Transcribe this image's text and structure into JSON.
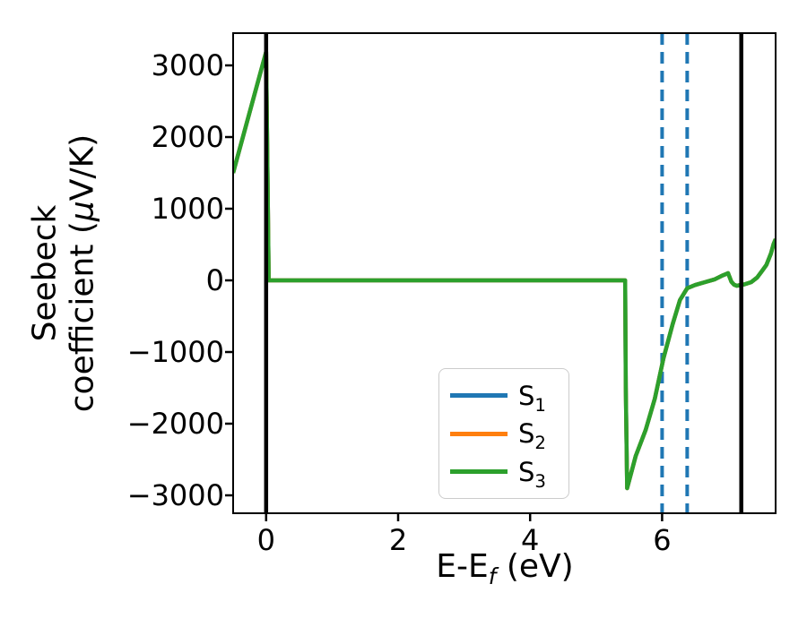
{
  "figure": {
    "ylabel": {
      "line1": "Seebeck",
      "line2_pre": "coefficient  (",
      "mu": "μ",
      "line2_post": "V/K)"
    },
    "xlabel": {
      "pre": "E-E",
      "sub": "f",
      "post": " (eV)"
    }
  },
  "legend": {
    "items": [
      {
        "label": "S",
        "sub": "1",
        "color": "#1f77b4"
      },
      {
        "label": "S",
        "sub": "2",
        "color": "#ff7f0e"
      },
      {
        "label": "S",
        "sub": "3",
        "color": "#2ca02c"
      }
    ]
  },
  "chart_data": {
    "type": "line",
    "title": "",
    "xlabel": "E-E_f (eV)",
    "ylabel": "Seebeck coefficient (μV/K)",
    "xlim": [
      -0.5,
      7.72
    ],
    "ylim": [
      -3250,
      3450
    ],
    "xticks": [
      0,
      2,
      4,
      6
    ],
    "xtick_labels": [
      "0",
      "2",
      "4",
      "6"
    ],
    "yticks": [
      3000,
      2000,
      1000,
      0,
      -1000,
      -2000,
      -3000
    ],
    "ytick_labels": [
      "3000",
      "2000",
      "1000",
      "0",
      "−1000",
      "−2000",
      "−3000"
    ],
    "grid": false,
    "legend_position": "lower center",
    "axvlines_solid_black": [
      0,
      7.2
    ],
    "axvlines_dashed_blue": {
      "x": [
        6.0,
        6.38
      ],
      "color": "#1f77b4"
    },
    "shared_points": [
      [
        -0.5,
        1500
      ],
      [
        0,
        3190
      ],
      [
        0.04,
        0
      ],
      [
        5.44,
        0
      ],
      [
        5.45,
        -1500
      ],
      [
        5.47,
        -2900
      ],
      [
        5.6,
        -2450
      ],
      [
        5.75,
        -2090
      ],
      [
        5.89,
        -1650
      ],
      [
        6.02,
        -1090
      ],
      [
        6.16,
        -610
      ],
      [
        6.27,
        -275
      ],
      [
        6.38,
        -110
      ],
      [
        6.5,
        -65
      ],
      [
        6.65,
        -25
      ],
      [
        6.8,
        15
      ],
      [
        6.92,
        70
      ],
      [
        7.0,
        100
      ],
      [
        7.05,
        -20
      ],
      [
        7.09,
        -60
      ],
      [
        7.13,
        -75
      ],
      [
        7.24,
        -58
      ],
      [
        7.35,
        -25
      ],
      [
        7.44,
        40
      ],
      [
        7.51,
        125
      ],
      [
        7.58,
        215
      ],
      [
        7.65,
        375
      ],
      [
        7.69,
        510
      ],
      [
        7.72,
        575
      ]
    ],
    "series": [
      {
        "name": "S_1",
        "color": "#1f77b4",
        "points": "shared",
        "note": "fully overplotted by S_3"
      },
      {
        "name": "S_2",
        "color": "#ff7f0e",
        "points": "shared",
        "note": "fully overplotted by S_3"
      },
      {
        "name": "S_3",
        "color": "#2ca02c",
        "points": "shared"
      }
    ]
  }
}
